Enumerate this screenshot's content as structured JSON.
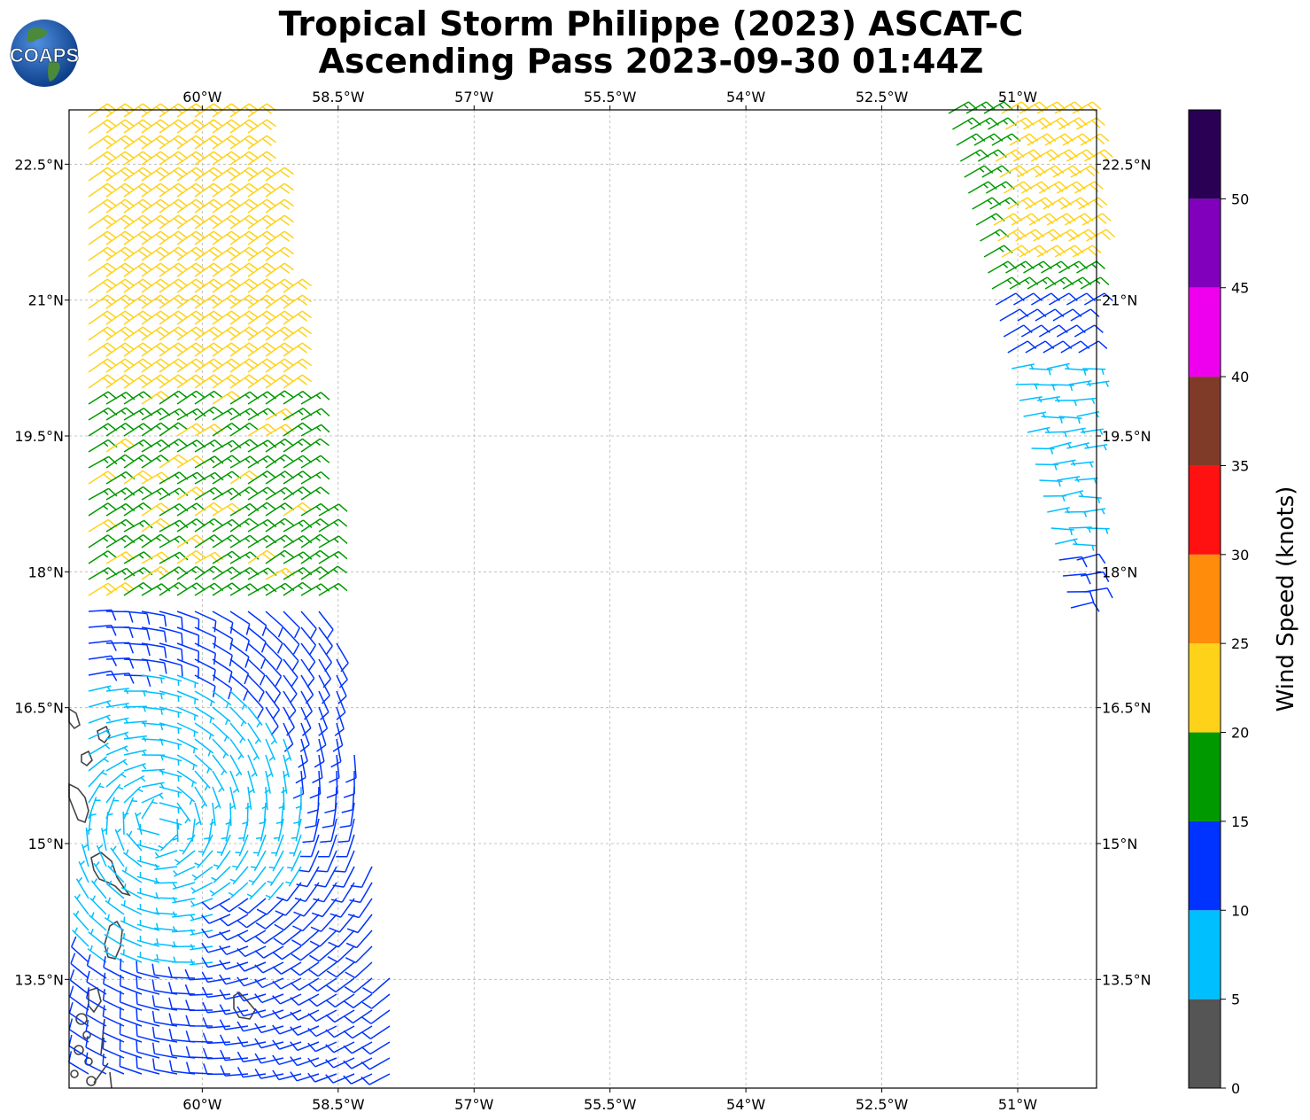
{
  "header": {
    "title_line1": "Tropical Storm Philippe (2023) ASCAT-C",
    "title_line2": "Ascending Pass 2023-09-30 01:44Z"
  },
  "logo": {
    "text": "COAPS",
    "ocean_color": "#1d5fb0",
    "land_color": "#4a8a3a"
  },
  "map": {
    "lon_ticks": [
      "60°W",
      "58.5°W",
      "57°W",
      "55.5°W",
      "54°W",
      "52.5°W",
      "51°W"
    ],
    "lat_ticks": [
      "22.5°N",
      "21°N",
      "19.5°N",
      "18°N",
      "16.5°N",
      "15°N",
      "13.5°N"
    ],
    "lon_range": [
      -61.47,
      -50.13
    ],
    "lat_range": [
      12.3,
      23.1
    ],
    "gridlines": true,
    "land_outline_color": "#444444"
  },
  "colorbar": {
    "label": "Wind Speed (knots)",
    "ticks": [
      "0",
      "5",
      "10",
      "15",
      "20",
      "25",
      "30",
      "35",
      "40",
      "45",
      "50"
    ],
    "bins": [
      {
        "min": 0,
        "max": 5,
        "color": "#555555"
      },
      {
        "min": 5,
        "max": 10,
        "color": "#00bfff"
      },
      {
        "min": 10,
        "max": 15,
        "color": "#0033ff"
      },
      {
        "min": 15,
        "max": 20,
        "color": "#009900"
      },
      {
        "min": 20,
        "max": 25,
        "color": "#ffd21a"
      },
      {
        "min": 25,
        "max": 30,
        "color": "#ff8c0a"
      },
      {
        "min": 30,
        "max": 35,
        "color": "#ff1111"
      },
      {
        "min": 35,
        "max": 40,
        "color": "#803b28"
      },
      {
        "min": 40,
        "max": 45,
        "color": "#ee00ee"
      },
      {
        "min": 45,
        "max": 50,
        "color": "#8000bb"
      },
      {
        "min": 50,
        "max": 55,
        "color": "#2a0055"
      }
    ]
  }
}
